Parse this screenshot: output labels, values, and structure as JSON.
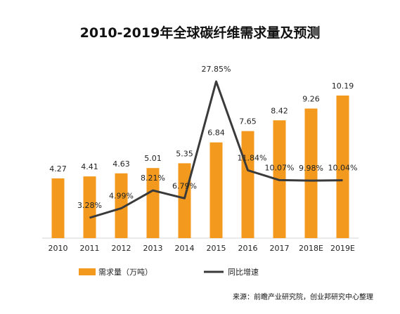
{
  "colors": {
    "bar": "#F39A1E",
    "line": "#3A3A3A",
    "background": "#FFFFFF",
    "axis": "#D6D6D6",
    "text": "#222222"
  },
  "source_text": "来源：前瞻产业研究院，创业邦研究中心整理",
  "chart_data": {
    "type": "bar",
    "title": "2010-2019年全球碳纤维需求量及预测",
    "categories": [
      "2010",
      "2011",
      "2012",
      "2013",
      "2014",
      "2015",
      "2016",
      "2017",
      "2018E",
      "2019E"
    ],
    "series": [
      {
        "name": "需求量（万吨）",
        "type": "bar",
        "values": [
          4.27,
          4.41,
          4.63,
          5.01,
          5.35,
          6.84,
          7.65,
          8.42,
          9.26,
          10.19
        ],
        "labels": [
          "4.27",
          "4.41",
          "4.63",
          "5.01",
          "5.35",
          "6.84",
          "7.65",
          "8.42",
          "9.26",
          "10.19"
        ]
      },
      {
        "name": "同比增速",
        "type": "line",
        "values": [
          null,
          3.28,
          4.99,
          8.21,
          6.79,
          27.85,
          11.84,
          10.07,
          9.98,
          10.04
        ],
        "labels": [
          null,
          "3.28%",
          "4.99%",
          "8.21%",
          "6.79%",
          "27.85%",
          "11.84%",
          "10.07%",
          "9.98%",
          "10.04%"
        ]
      }
    ],
    "bar_ylim": [
      0,
      15
    ],
    "line_ylim": [
      -10,
      30
    ],
    "grid": false,
    "legend_position": "bottom-left"
  }
}
